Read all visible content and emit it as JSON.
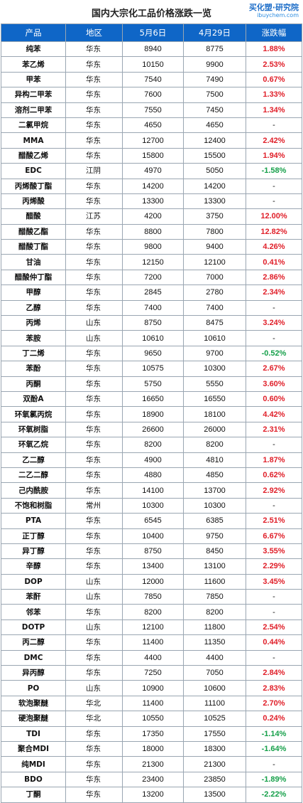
{
  "header": {
    "title": "国内大宗化工品价格涨跌一览",
    "logo_main": "买化塑·研究院",
    "logo_sub": "ibuychem.com"
  },
  "table": {
    "columns": [
      "产品",
      "地区",
      "5月6日",
      "4月29日",
      "涨跌幅"
    ],
    "colors": {
      "header_bg": "#0f66c7",
      "up": "#e0202a",
      "down": "#16a04a"
    },
    "rows": [
      {
        "product": "纯苯",
        "region": "华东",
        "may6": "8940",
        "apr29": "8775",
        "change": "1.88%",
        "dir": "up"
      },
      {
        "product": "苯乙烯",
        "region": "华东",
        "may6": "10150",
        "apr29": "9900",
        "change": "2.53%",
        "dir": "up"
      },
      {
        "product": "甲苯",
        "region": "华东",
        "may6": "7540",
        "apr29": "7490",
        "change": "0.67%",
        "dir": "up"
      },
      {
        "product": "异构二甲苯",
        "region": "华东",
        "may6": "7600",
        "apr29": "7500",
        "change": "1.33%",
        "dir": "up"
      },
      {
        "product": "溶剂二甲苯",
        "region": "华东",
        "may6": "7550",
        "apr29": "7450",
        "change": "1.34%",
        "dir": "up"
      },
      {
        "product": "二氯甲烷",
        "region": "华东",
        "may6": "4650",
        "apr29": "4650",
        "change": "-",
        "dir": "flat"
      },
      {
        "product": "MMA",
        "region": "华东",
        "may6": "12700",
        "apr29": "12400",
        "change": "2.42%",
        "dir": "up"
      },
      {
        "product": "醋酸乙烯",
        "region": "华东",
        "may6": "15800",
        "apr29": "15500",
        "change": "1.94%",
        "dir": "up"
      },
      {
        "product": "EDC",
        "region": "江阴",
        "may6": "4970",
        "apr29": "5050",
        "change": "-1.58%",
        "dir": "down"
      },
      {
        "product": "丙烯酸丁酯",
        "region": "华东",
        "may6": "14200",
        "apr29": "14200",
        "change": "-",
        "dir": "flat"
      },
      {
        "product": "丙烯酸",
        "region": "华东",
        "may6": "13300",
        "apr29": "13300",
        "change": "-",
        "dir": "flat"
      },
      {
        "product": "醋酸",
        "region": "江苏",
        "may6": "4200",
        "apr29": "3750",
        "change": "12.00%",
        "dir": "up"
      },
      {
        "product": "醋酸乙酯",
        "region": "华东",
        "may6": "8800",
        "apr29": "7800",
        "change": "12.82%",
        "dir": "up"
      },
      {
        "product": "醋酸丁酯",
        "region": "华东",
        "may6": "9800",
        "apr29": "9400",
        "change": "4.26%",
        "dir": "up"
      },
      {
        "product": "甘油",
        "region": "华东",
        "may6": "12150",
        "apr29": "12100",
        "change": "0.41%",
        "dir": "up"
      },
      {
        "product": "醋酸仲丁酯",
        "region": "华东",
        "may6": "7200",
        "apr29": "7000",
        "change": "2.86%",
        "dir": "up"
      },
      {
        "product": "甲醇",
        "region": "华东",
        "may6": "2845",
        "apr29": "2780",
        "change": "2.34%",
        "dir": "up"
      },
      {
        "product": "乙醇",
        "region": "华东",
        "may6": "7400",
        "apr29": "7400",
        "change": "-",
        "dir": "flat"
      },
      {
        "product": "丙烯",
        "region": "山东",
        "may6": "8750",
        "apr29": "8475",
        "change": "3.24%",
        "dir": "up"
      },
      {
        "product": "苯胺",
        "region": "山东",
        "may6": "10610",
        "apr29": "10610",
        "change": "-",
        "dir": "flat"
      },
      {
        "product": "丁二烯",
        "region": "华东",
        "may6": "9650",
        "apr29": "9700",
        "change": "-0.52%",
        "dir": "down"
      },
      {
        "product": "苯酚",
        "region": "华东",
        "may6": "10575",
        "apr29": "10300",
        "change": "2.67%",
        "dir": "up"
      },
      {
        "product": "丙酮",
        "region": "华东",
        "may6": "5750",
        "apr29": "5550",
        "change": "3.60%",
        "dir": "up"
      },
      {
        "product": "双酚A",
        "region": "华东",
        "may6": "16650",
        "apr29": "16550",
        "change": "0.60%",
        "dir": "up"
      },
      {
        "product": "环氧氯丙烷",
        "region": "华东",
        "may6": "18900",
        "apr29": "18100",
        "change": "4.42%",
        "dir": "up"
      },
      {
        "product": "环氧树脂",
        "region": "华东",
        "may6": "26600",
        "apr29": "26000",
        "change": "2.31%",
        "dir": "up"
      },
      {
        "product": "环氧乙烷",
        "region": "华东",
        "may6": "8200",
        "apr29": "8200",
        "change": "-",
        "dir": "flat"
      },
      {
        "product": "乙二醇",
        "region": "华东",
        "may6": "4900",
        "apr29": "4810",
        "change": "1.87%",
        "dir": "up"
      },
      {
        "product": "二乙二醇",
        "region": "华东",
        "may6": "4880",
        "apr29": "4850",
        "change": "0.62%",
        "dir": "up"
      },
      {
        "product": "己内酰胺",
        "region": "华东",
        "may6": "14100",
        "apr29": "13700",
        "change": "2.92%",
        "dir": "up"
      },
      {
        "product": "不饱和树脂",
        "region": "常州",
        "may6": "10300",
        "apr29": "10300",
        "change": "-",
        "dir": "flat"
      },
      {
        "product": "PTA",
        "region": "华东",
        "may6": "6545",
        "apr29": "6385",
        "change": "2.51%",
        "dir": "up"
      },
      {
        "product": "正丁醇",
        "region": "华东",
        "may6": "10400",
        "apr29": "9750",
        "change": "6.67%",
        "dir": "up"
      },
      {
        "product": "异丁醇",
        "region": "华东",
        "may6": "8750",
        "apr29": "8450",
        "change": "3.55%",
        "dir": "up"
      },
      {
        "product": "辛醇",
        "region": "华东",
        "may6": "13400",
        "apr29": "13100",
        "change": "2.29%",
        "dir": "up"
      },
      {
        "product": "DOP",
        "region": "山东",
        "may6": "12000",
        "apr29": "11600",
        "change": "3.45%",
        "dir": "up"
      },
      {
        "product": "苯酐",
        "region": "山东",
        "may6": "7850",
        "apr29": "7850",
        "change": "-",
        "dir": "flat"
      },
      {
        "product": "邻苯",
        "region": "华东",
        "may6": "8200",
        "apr29": "8200",
        "change": "-",
        "dir": "flat"
      },
      {
        "product": "DOTP",
        "region": "山东",
        "may6": "12100",
        "apr29": "11800",
        "change": "2.54%",
        "dir": "up"
      },
      {
        "product": "丙二醇",
        "region": "华东",
        "may6": "11400",
        "apr29": "11350",
        "change": "0.44%",
        "dir": "up"
      },
      {
        "product": "DMC",
        "region": "华东",
        "may6": "4400",
        "apr29": "4400",
        "change": "-",
        "dir": "flat"
      },
      {
        "product": "异丙醇",
        "region": "华东",
        "may6": "7250",
        "apr29": "7050",
        "change": "2.84%",
        "dir": "up"
      },
      {
        "product": "PO",
        "region": "山东",
        "may6": "10900",
        "apr29": "10600",
        "change": "2.83%",
        "dir": "up"
      },
      {
        "product": "软泡聚醚",
        "region": "华北",
        "may6": "11400",
        "apr29": "11100",
        "change": "2.70%",
        "dir": "up"
      },
      {
        "product": "硬泡聚醚",
        "region": "华北",
        "may6": "10550",
        "apr29": "10525",
        "change": "0.24%",
        "dir": "up"
      },
      {
        "product": "TDI",
        "region": "华东",
        "may6": "17350",
        "apr29": "17550",
        "change": "-1.14%",
        "dir": "down"
      },
      {
        "product": "聚合MDI",
        "region": "华东",
        "may6": "18000",
        "apr29": "18300",
        "change": "-1.64%",
        "dir": "down"
      },
      {
        "product": "纯MDI",
        "region": "华东",
        "may6": "21300",
        "apr29": "21300",
        "change": "-",
        "dir": "flat"
      },
      {
        "product": "BDO",
        "region": "华东",
        "may6": "23400",
        "apr29": "23850",
        "change": "-1.89%",
        "dir": "down"
      },
      {
        "product": "丁酮",
        "region": "华东",
        "may6": "13200",
        "apr29": "13500",
        "change": "-2.22%",
        "dir": "down"
      }
    ]
  }
}
